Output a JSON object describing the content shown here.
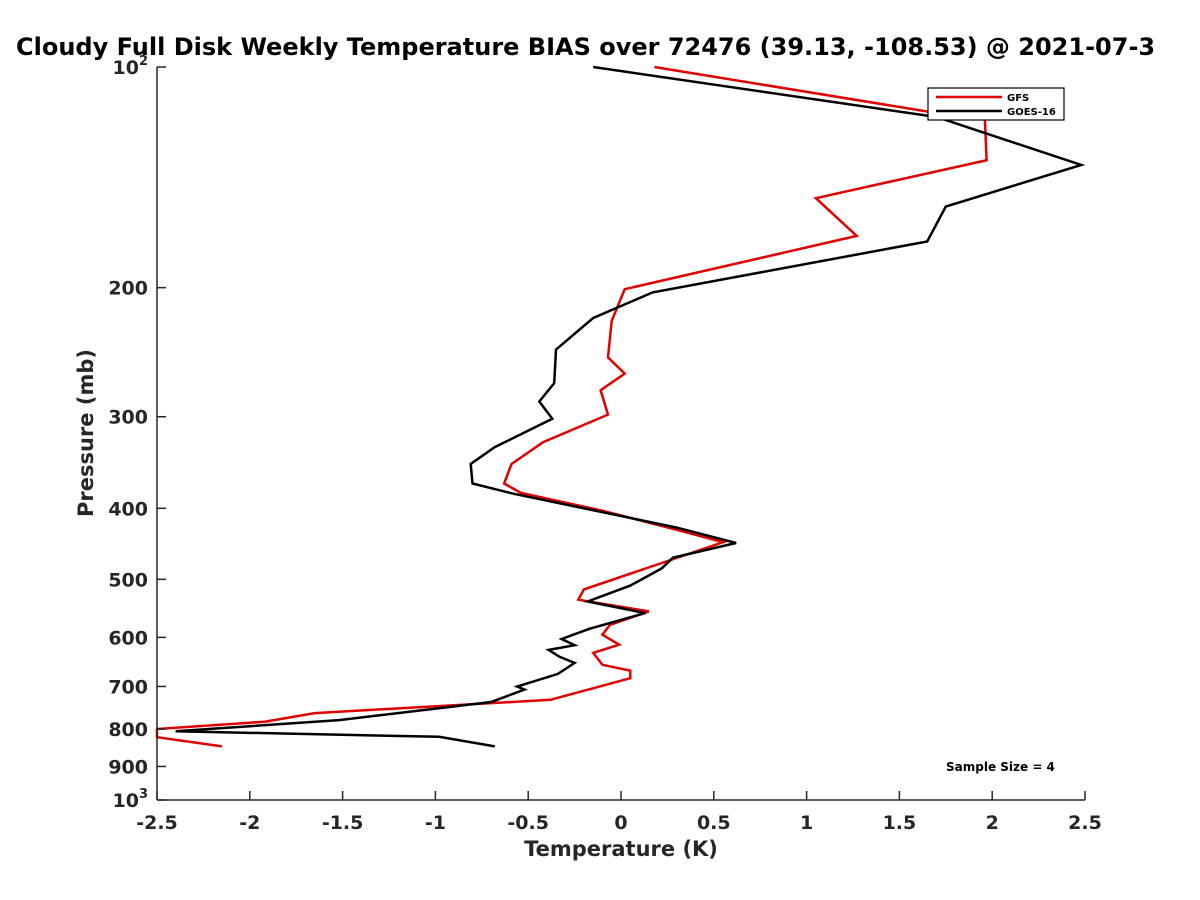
{
  "chart_data": {
    "type": "line",
    "title": "Cloudy Full Disk Weekly Temperature BIAS over 72476 (39.13, -108.53) @ 2021-07-3",
    "xlabel": "Temperature (K)",
    "ylabel": "Pressure (mb)",
    "xlim": [
      -2.5,
      2.5
    ],
    "ylim": [
      100,
      1000
    ],
    "y_scale": "log",
    "y_reversed": true,
    "x_ticks": [
      -2.5,
      -2,
      -1.5,
      -1,
      -0.5,
      0,
      0.5,
      1,
      1.5,
      2,
      2.5
    ],
    "x_tick_labels": [
      "-2.5",
      "-2",
      "-1.5",
      "-1",
      "-0.5",
      "0",
      "0.5",
      "1",
      "1.5",
      "2",
      "2.5"
    ],
    "y_ticks": [
      {
        "value": 100,
        "base": "10",
        "exp": "2"
      },
      {
        "value": 200,
        "label": "200"
      },
      {
        "value": 300,
        "label": "300"
      },
      {
        "value": 400,
        "label": "400"
      },
      {
        "value": 500,
        "label": "500"
      },
      {
        "value": 600,
        "label": "600"
      },
      {
        "value": 700,
        "label": "700"
      },
      {
        "value": 800,
        "label": "800"
      },
      {
        "value": 900,
        "label": "900"
      },
      {
        "value": 1000,
        "base": "10",
        "exp": "3"
      }
    ],
    "grid": false,
    "legend_position": "top-right",
    "annotation": "Sample Size = 4",
    "series": [
      {
        "name": "GFS",
        "color": "#e00000",
        "points": [
          [
            0.18,
            100
          ],
          [
            1.65,
            115
          ],
          [
            1.96,
            117
          ],
          [
            1.97,
            134
          ],
          [
            1.05,
            151
          ],
          [
            1.27,
            170
          ],
          [
            0.02,
            201
          ],
          [
            -0.05,
            222
          ],
          [
            -0.07,
            249
          ],
          [
            0.02,
            262
          ],
          [
            -0.11,
            276
          ],
          [
            -0.07,
            298
          ],
          [
            -0.42,
            325
          ],
          [
            -0.59,
            348
          ],
          [
            -0.63,
            370
          ],
          [
            -0.54,
            381
          ],
          [
            -0.1,
            403
          ],
          [
            0.3,
            428
          ],
          [
            0.55,
            445
          ],
          [
            0.22,
            475
          ],
          [
            -0.2,
            516
          ],
          [
            -0.23,
            533
          ],
          [
            0.15,
            553
          ],
          [
            -0.06,
            577
          ],
          [
            -0.1,
            595
          ],
          [
            -0.01,
            614
          ],
          [
            -0.15,
            630
          ],
          [
            -0.1,
            654
          ],
          [
            0.05,
            666
          ],
          [
            0.05,
            682
          ],
          [
            -0.38,
            730
          ],
          [
            -1.65,
            761
          ],
          [
            -1.92,
            782
          ],
          [
            -2.5,
            800
          ],
          [
            -2.5,
            821
          ],
          [
            -2.15,
            845
          ]
        ]
      },
      {
        "name": "GOES-16",
        "color": "#000000",
        "points": [
          [
            -0.15,
            100
          ],
          [
            1.7,
            117
          ],
          [
            2.48,
            136
          ],
          [
            1.75,
            155
          ],
          [
            1.65,
            173
          ],
          [
            0.17,
            203
          ],
          [
            -0.15,
            220
          ],
          [
            -0.35,
            243
          ],
          [
            -0.36,
            270
          ],
          [
            -0.44,
            286
          ],
          [
            -0.37,
            302
          ],
          [
            -0.68,
            330
          ],
          [
            -0.81,
            348
          ],
          [
            -0.8,
            370
          ],
          [
            -0.58,
            382
          ],
          [
            0.3,
            425
          ],
          [
            0.62,
            446
          ],
          [
            0.28,
            467
          ],
          [
            0.22,
            483
          ],
          [
            0.05,
            510
          ],
          [
            -0.18,
            536
          ],
          [
            0.13,
            556
          ],
          [
            -0.17,
            584
          ],
          [
            -0.32,
            603
          ],
          [
            -0.25,
            615
          ],
          [
            -0.39,
            624
          ],
          [
            -0.33,
            638
          ],
          [
            -0.25,
            650
          ],
          [
            -0.34,
            673
          ],
          [
            -0.56,
            700
          ],
          [
            -0.52,
            707
          ],
          [
            -0.7,
            735
          ],
          [
            -1.52,
            778
          ],
          [
            -2.4,
            806
          ],
          [
            -0.98,
            820
          ],
          [
            -0.68,
            845
          ]
        ]
      }
    ]
  }
}
